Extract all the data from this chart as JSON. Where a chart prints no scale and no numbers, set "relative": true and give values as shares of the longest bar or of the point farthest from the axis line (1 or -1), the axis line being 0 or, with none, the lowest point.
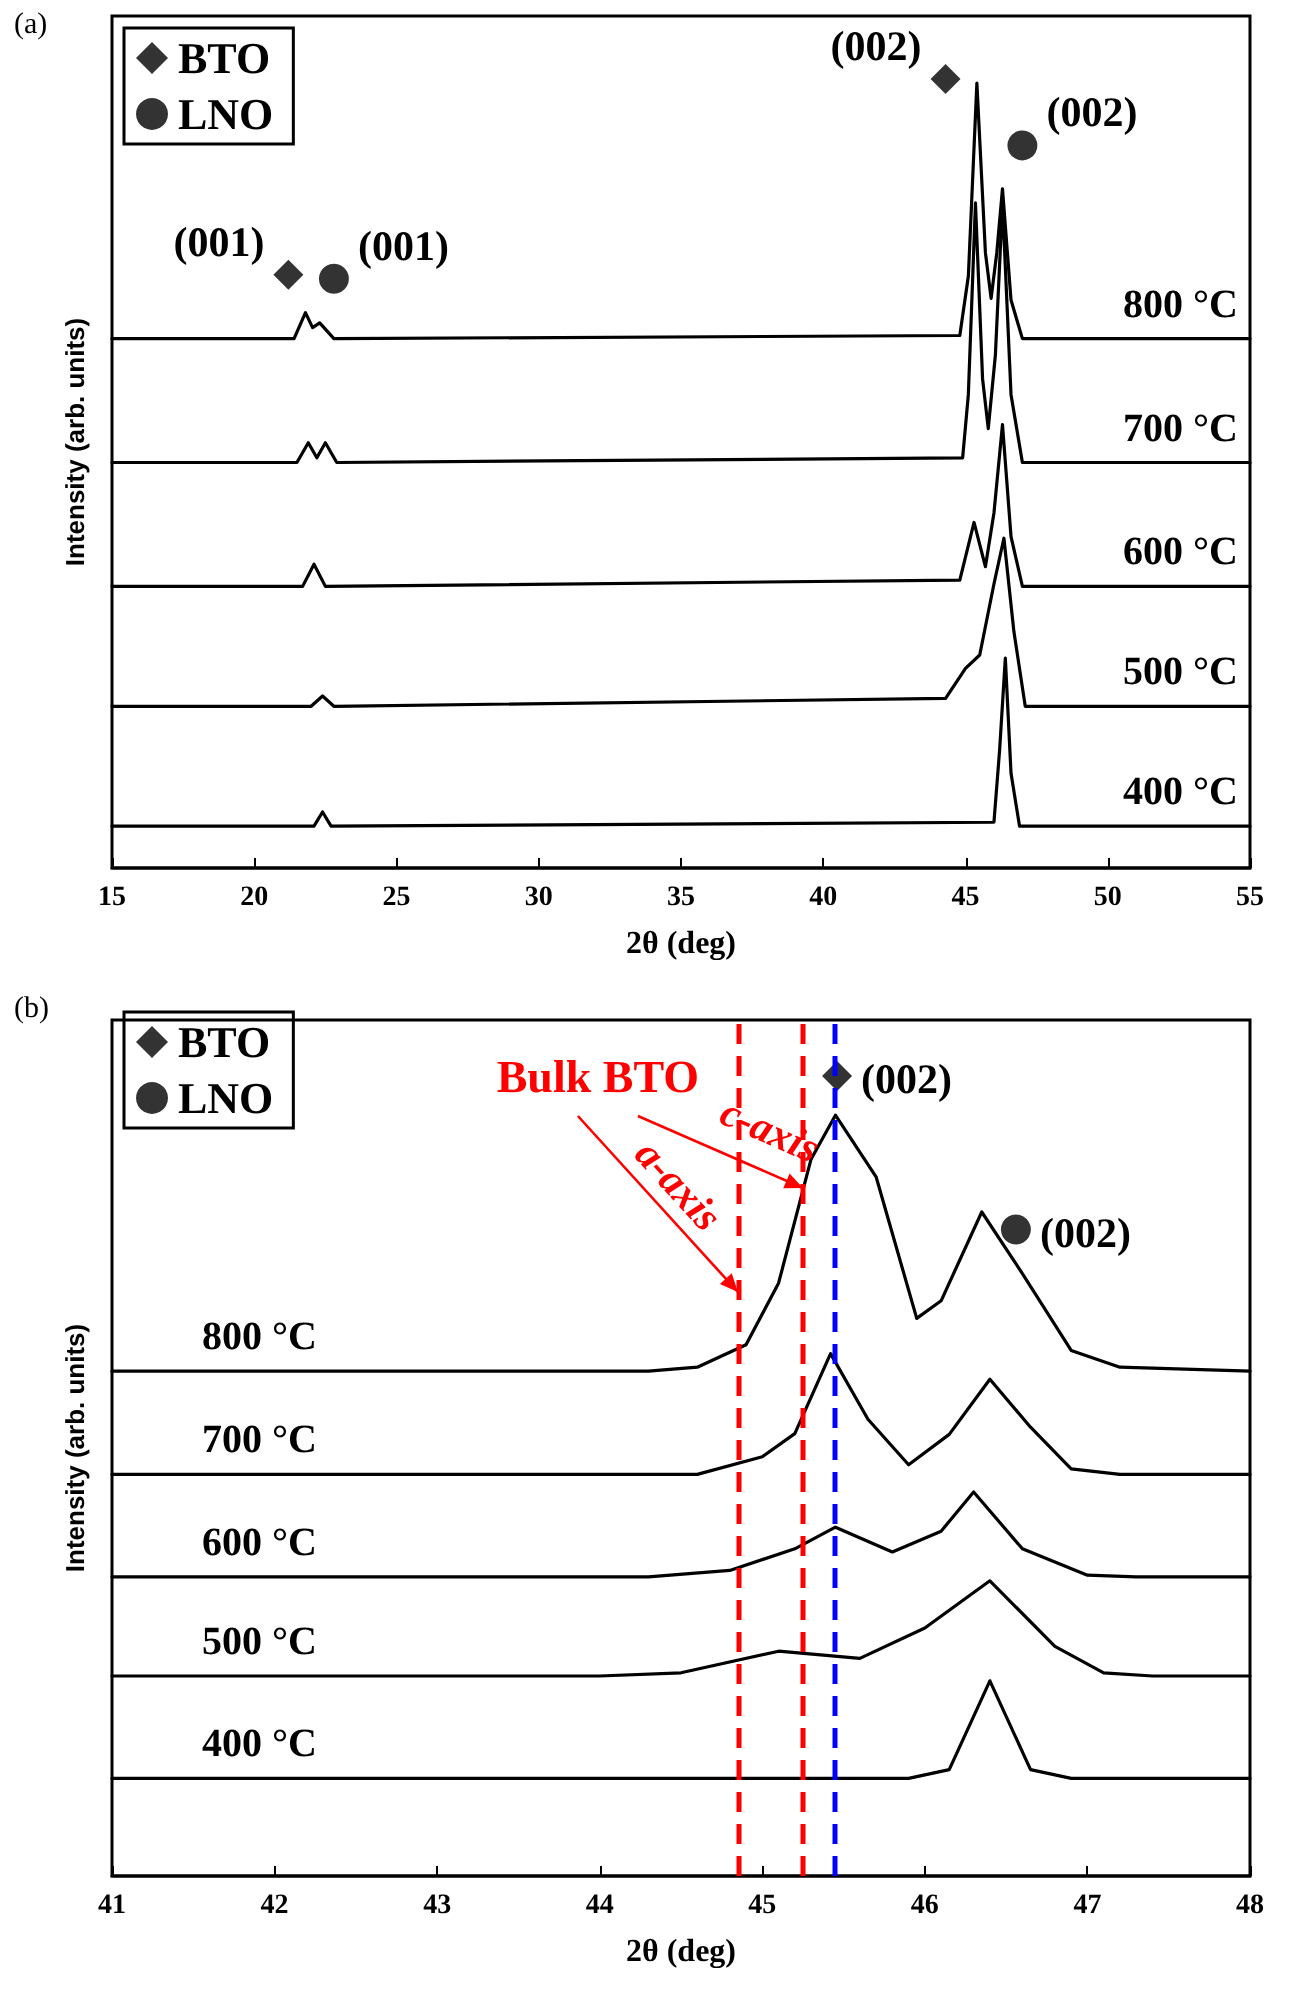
{
  "chart_data": [
    {
      "type": "line",
      "title": "(a)",
      "xlabel": "2θ (deg)",
      "ylabel": "Intensity (arb. units)",
      "relative": true,
      "xlim": [
        15,
        55
      ],
      "xticks": [
        15,
        20,
        25,
        30,
        35,
        40,
        45,
        50,
        55
      ],
      "grid": false,
      "legend": "top left",
      "marker": "none",
      "series": [
        {
          "name": "800 °C",
          "color": "#000000",
          "x": [
            15,
            21.4,
            21.8,
            22.05,
            22.3,
            22.8,
            44.8,
            45.1,
            45.4,
            45.7,
            45.9,
            46.1,
            46.3,
            46.6,
            47.0,
            55
          ],
          "values": [
            0.671,
            0.671,
            0.704,
            0.685,
            0.691,
            0.671,
            0.675,
            0.75,
            0.995,
            0.78,
            0.722,
            0.78,
            0.861,
            0.72,
            0.671,
            0.671
          ]
        },
        {
          "name": "700 °C",
          "color": "#000000",
          "x": [
            15,
            21.5,
            21.9,
            22.2,
            22.5,
            22.9,
            44.9,
            45.1,
            45.35,
            45.6,
            45.8,
            46.05,
            46.3,
            46.6,
            47.0,
            55
          ],
          "values": [
            0.514,
            0.514,
            0.539,
            0.52,
            0.539,
            0.514,
            0.52,
            0.6,
            0.843,
            0.62,
            0.557,
            0.65,
            0.843,
            0.6,
            0.514,
            0.514
          ]
        },
        {
          "name": "600 °C",
          "color": "#000000",
          "x": [
            15,
            21.7,
            22.1,
            22.5,
            44.8,
            45.3,
            45.7,
            46.0,
            46.3,
            46.6,
            47.0,
            55
          ],
          "values": [
            0.357,
            0.357,
            0.385,
            0.357,
            0.365,
            0.438,
            0.382,
            0.45,
            0.562,
            0.42,
            0.357,
            0.357
          ]
        },
        {
          "name": "500 °C",
          "color": "#000000",
          "x": [
            15,
            22.0,
            22.4,
            22.8,
            44.3,
            45.0,
            45.5,
            46.0,
            46.35,
            46.7,
            47.1,
            55
          ],
          "values": [
            0.205,
            0.205,
            0.218,
            0.205,
            0.215,
            0.253,
            0.27,
            0.36,
            0.418,
            0.3,
            0.205,
            0.205
          ]
        },
        {
          "name": "400 °C",
          "color": "#000000",
          "x": [
            15,
            22.1,
            22.4,
            22.7,
            46.0,
            46.2,
            46.4,
            46.6,
            46.9,
            55
          ],
          "values": [
            0.053,
            0.053,
            0.071,
            0.053,
            0.058,
            0.15,
            0.266,
            0.12,
            0.053,
            0.053
          ]
        },
        {
          "name": "BTO",
          "type": "scatter",
          "marker": "diamond",
          "color": "#000000",
          "x": [
            21.2,
            44.3
          ],
          "values": [
            0.752,
            1.0
          ]
        },
        {
          "name": "LNO",
          "type": "scatter",
          "marker": "circle",
          "color": "#000000",
          "x": [
            22.8,
            47.0
          ],
          "values": [
            0.747,
            0.916
          ]
        }
      ],
      "annotations": [
        "(001)",
        "(001)",
        "(002)",
        "(002)"
      ]
    },
    {
      "type": "line",
      "title": "(b)",
      "xlabel": "2θ (deg)",
      "ylabel": "Intensity (arb. units)",
      "relative": true,
      "xlim": [
        41,
        48
      ],
      "xticks": [
        41,
        42,
        43,
        44,
        45,
        46,
        47,
        48
      ],
      "grid": false,
      "legend": "top left",
      "marker": "none",
      "series": [
        {
          "name": "800 °C",
          "color": "#000000",
          "x": [
            41,
            44.3,
            44.6,
            44.9,
            45.1,
            45.3,
            45.45,
            45.7,
            45.95,
            46.1,
            46.35,
            46.6,
            46.9,
            47.2,
            48
          ],
          "values": [
            0.631,
            0.631,
            0.636,
            0.664,
            0.741,
            0.896,
            0.951,
            0.874,
            0.697,
            0.719,
            0.83,
            0.753,
            0.657,
            0.636,
            0.631
          ]
        },
        {
          "name": "700 °C",
          "color": "#000000",
          "x": [
            41,
            44.6,
            45.0,
            45.2,
            45.42,
            45.65,
            45.9,
            46.15,
            46.4,
            46.65,
            46.9,
            47.2,
            48
          ],
          "values": [
            0.502,
            0.502,
            0.524,
            0.553,
            0.653,
            0.571,
            0.514,
            0.552,
            0.621,
            0.561,
            0.509,
            0.502,
            0.502
          ]
        },
        {
          "name": "600 °C",
          "color": "#000000",
          "x": [
            41,
            44.3,
            44.8,
            45.2,
            45.45,
            45.8,
            46.1,
            46.3,
            46.6,
            47.0,
            47.3,
            48
          ],
          "values": [
            0.374,
            0.374,
            0.382,
            0.409,
            0.436,
            0.405,
            0.431,
            0.48,
            0.409,
            0.376,
            0.374,
            0.374
          ]
        },
        {
          "name": "500 °C",
          "color": "#000000",
          "x": [
            41,
            44.0,
            44.5,
            45.1,
            45.6,
            46.0,
            46.4,
            46.8,
            47.1,
            47.4,
            48
          ],
          "values": [
            0.25,
            0.25,
            0.254,
            0.281,
            0.272,
            0.31,
            0.369,
            0.287,
            0.254,
            0.25,
            0.25
          ]
        },
        {
          "name": "400 °C",
          "color": "#000000",
          "x": [
            41,
            45.9,
            46.15,
            46.4,
            46.65,
            46.9,
            48
          ],
          "values": [
            0.122,
            0.122,
            0.133,
            0.244,
            0.133,
            0.122,
            0.122
          ]
        },
        {
          "name": "BTO",
          "type": "scatter",
          "marker": "diamond",
          "color": "#000000",
          "x": [
            45.46
          ],
          "values": [
            1.0
          ]
        },
        {
          "name": "LNO",
          "type": "scatter",
          "marker": "circle",
          "color": "#000000",
          "x": [
            46.56
          ],
          "values": [
            0.808
          ]
        }
      ],
      "ref_lines": [
        {
          "axis": "x",
          "value": 44.85,
          "color": "#ff0000",
          "line_style": "dashed"
        },
        {
          "axis": "x",
          "value": 45.25,
          "color": "#ff0000",
          "line_style": "dashed"
        },
        {
          "axis": "x",
          "value": 45.45,
          "color": "#0000ff",
          "line_style": "dashed"
        }
      ],
      "annotations": [
        "(002)",
        "(002)",
        "Bulk BTO",
        "a-axis",
        "c-axis"
      ]
    }
  ]
}
